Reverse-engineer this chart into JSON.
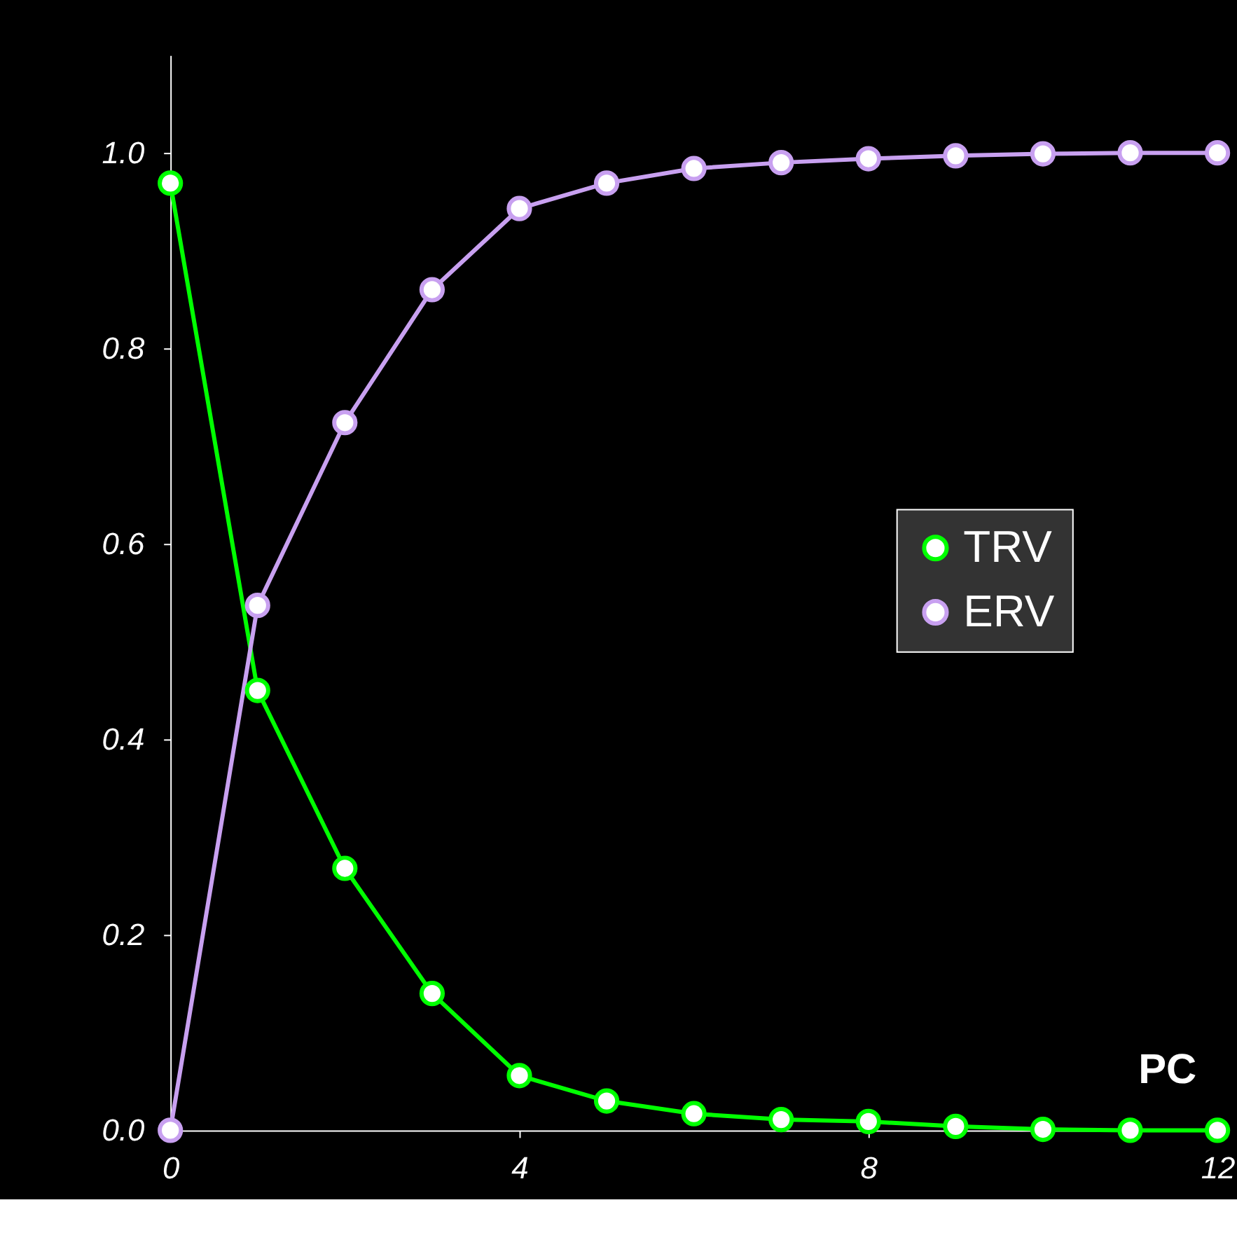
{
  "chart_data": {
    "type": "line",
    "xlabel": "PC",
    "x": [
      0,
      1,
      2,
      3,
      4,
      5,
      6,
      7,
      8,
      9,
      10,
      11,
      12
    ],
    "series": [
      {
        "name": "TRV",
        "color": "#00ff00",
        "values": [
          0.969,
          0.45,
          0.268,
          0.14,
          0.056,
          0.03,
          0.017,
          0.011,
          0.009,
          0.004,
          0.001,
          0.0,
          0.0
        ]
      },
      {
        "name": "ERV",
        "color": "#c8a0f0",
        "values": [
          0.0,
          0.537,
          0.724,
          0.86,
          0.943,
          0.969,
          0.984,
          0.99,
          0.994,
          0.997,
          0.999,
          1.0,
          1.0
        ]
      }
    ],
    "xlim": [
      0,
      12
    ],
    "xticks": [
      0,
      4,
      8,
      12
    ],
    "ylim": [
      0,
      1.1
    ],
    "yticks": [
      {
        "value": 0,
        "label": "0.0"
      },
      {
        "value": 0.2,
        "label": "0.2"
      },
      {
        "value": 0.4,
        "label": "0.4"
      },
      {
        "value": 0.6,
        "label": "0.6"
      },
      {
        "value": 0.8,
        "label": "0.8"
      },
      {
        "value": 1.0,
        "label": "1.0"
      }
    ],
    "marker": "circle",
    "line_style": "solid",
    "legend": "right",
    "grid": false
  }
}
